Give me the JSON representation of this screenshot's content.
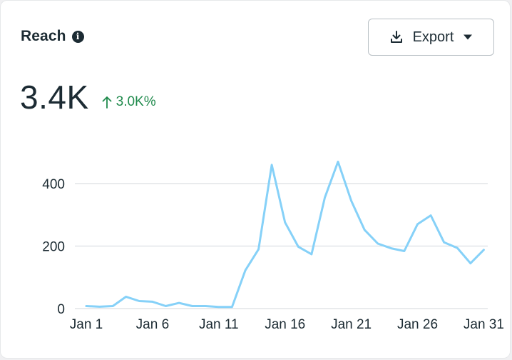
{
  "card": {
    "title": "Reach",
    "info_icon": "info-icon",
    "export_button": {
      "label": "Export",
      "icon": "download-icon",
      "caret_icon": "caret-down-icon"
    },
    "metric": {
      "value": "3.4K",
      "delta": "3.0K%",
      "delta_icon": "arrow-up-icon",
      "delta_color": "#1f8a4c"
    }
  },
  "chart_data": {
    "type": "line",
    "xlabel": "",
    "ylabel": "",
    "x": [
      1,
      2,
      3,
      4,
      5,
      6,
      7,
      8,
      9,
      10,
      11,
      12,
      13,
      14,
      15,
      16,
      17,
      18,
      19,
      20,
      21,
      22,
      23,
      24,
      25,
      26,
      27,
      28,
      29,
      30,
      31
    ],
    "x_ticks": [
      {
        "x": 1,
        "label": "Jan 1"
      },
      {
        "x": 6,
        "label": "Jan 6"
      },
      {
        "x": 11,
        "label": "Jan 11"
      },
      {
        "x": 16,
        "label": "Jan 16"
      },
      {
        "x": 21,
        "label": "Jan 21"
      },
      {
        "x": 26,
        "label": "Jan 26"
      },
      {
        "x": 31,
        "label": "Jan 31"
      }
    ],
    "y_ticks": [
      0,
      200,
      400
    ],
    "xlim": [
      1,
      31.3
    ],
    "ylim": [
      0,
      430
    ],
    "grid": true,
    "series": [
      {
        "color": "#86d1f8",
        "values": [
          8,
          6,
          8,
          38,
          24,
          22,
          8,
          18,
          8,
          8,
          5,
          5,
          122,
          190,
          460,
          276,
          198,
          174,
          355,
          470,
          345,
          252,
          208,
          193,
          184,
          270,
          298,
          212,
          194,
          145,
          188
        ]
      }
    ]
  }
}
